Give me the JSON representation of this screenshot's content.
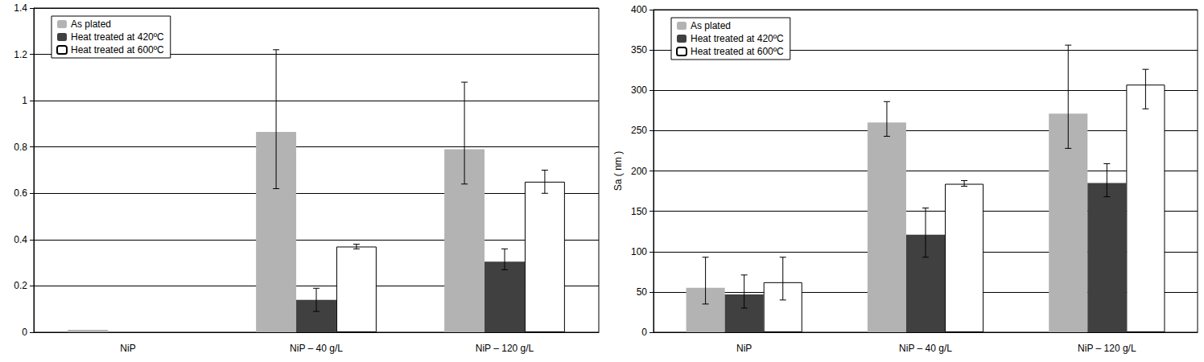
{
  "chart_data": [
    {
      "type": "bar",
      "categories": [
        "NiP",
        "NiP – 40 g/L",
        "NiP – 120 g/L"
      ],
      "series": [
        {
          "name": "As plated",
          "color": "#b3b3b3",
          "values": [
            0.01,
            0.865,
            0.79
          ],
          "error_bars": [
            null,
            [
              0.62,
              1.22
            ],
            [
              0.64,
              1.08
            ]
          ]
        },
        {
          "name": "Heat treated at 420ºC",
          "color": "#404040",
          "values": [
            null,
            0.14,
            0.305
          ],
          "error_bars": [
            null,
            [
              0.09,
              0.19
            ],
            [
              0.27,
              0.36
            ]
          ]
        },
        {
          "name": "Heat treated at 600ºC",
          "color": "#ffffff",
          "values": [
            null,
            0.37,
            0.65
          ],
          "error_bars": [
            null,
            [
              0.36,
              0.38
            ],
            [
              0.6,
              0.7
            ]
          ]
        }
      ],
      "ylim": [
        0,
        1.4
      ],
      "yticks": [
        0,
        0.2,
        0.4,
        0.6,
        0.8,
        1,
        1.2,
        1.4
      ],
      "grid": true,
      "legend": "upper left"
    },
    {
      "type": "bar",
      "ylabel": "Sa ( nm )",
      "categories": [
        "NiP",
        "NiP – 40 g/L",
        "NiP – 120 g/L"
      ],
      "series": [
        {
          "name": "As plated",
          "color": "#b3b3b3",
          "values": [
            55,
            260,
            271
          ],
          "error_bars": [
            [
              35,
              93
            ],
            [
              243,
              286
            ],
            [
              228,
              356
            ]
          ]
        },
        {
          "name": "Heat treated at 420ºC",
          "color": "#404040",
          "values": [
            47,
            121,
            185
          ],
          "error_bars": [
            [
              30,
              71
            ],
            [
              93,
              154
            ],
            [
              168,
              209
            ]
          ]
        },
        {
          "name": "Heat treated at 600ºC",
          "color": "#ffffff",
          "values": [
            62,
            184,
            307
          ],
          "error_bars": [
            [
              40,
              93
            ],
            [
              181,
              188
            ],
            [
              277,
              326
            ]
          ]
        }
      ],
      "ylim": [
        0,
        400
      ],
      "yticks": [
        0,
        50,
        100,
        150,
        200,
        250,
        300,
        350,
        400
      ],
      "grid": true,
      "legend": "upper left"
    }
  ]
}
